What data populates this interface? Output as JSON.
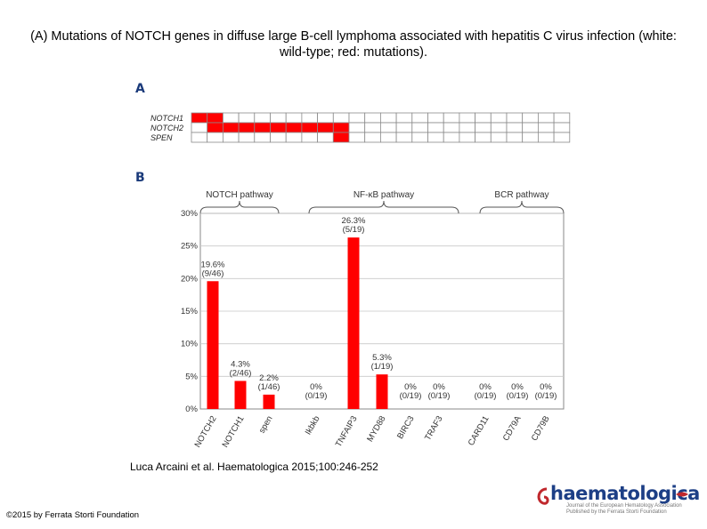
{
  "slide": {
    "title": "(A) Mutations of NOTCH genes in diffuse large B-cell lymphoma associated with hepatitis C virus infection (white: wild-type; red: mutations).",
    "citation": "Luca Arcaini et al. Haematologica 2015;100:246-252",
    "copyright": "©2015 by Ferrata Storti Foundation",
    "logo_text": "haematologica",
    "logo_subtitle": "Journal of the European Hematology Association Published by the Ferrata Storti Foundation"
  },
  "panel_a": {
    "letter": "A",
    "rows": [
      "NOTCH1",
      "NOTCH2",
      "SPEN"
    ],
    "columns": 24,
    "mutated_columns": [
      [
        0,
        1
      ],
      [
        1,
        2,
        3,
        4,
        5,
        6,
        7,
        8,
        9
      ],
      [
        9
      ]
    ],
    "colors": {
      "mutated": "#ff0000",
      "wild": "#ffffff",
      "grid": "#8a8a8a"
    }
  },
  "panel_b": {
    "letter": "B",
    "pathways": [
      "NOTCH pathway",
      "NF-κB pathway",
      "BCR pathway"
    ]
  },
  "chart_data": {
    "type": "bar",
    "categories": [
      "NOTCH2",
      "NOTCH1",
      "spen",
      "Ikbkb",
      "TNFAIP3",
      "MYD88",
      "BIRC3",
      "TRAF3",
      "CARD11",
      "CD79A",
      "CD79B"
    ],
    "values": [
      19.6,
      4.3,
      2.2,
      0,
      26.3,
      5.3,
      0,
      0,
      0,
      0,
      0
    ],
    "data_labels": [
      [
        "19.6%",
        "(9/46)"
      ],
      [
        "4.3%",
        "(2/46)"
      ],
      [
        "2.2%",
        "(1/46)"
      ],
      [
        "0%",
        "(0/19)"
      ],
      [
        "26.3%",
        "(5/19)"
      ],
      [
        "5.3%",
        "(1/19)"
      ],
      [
        "0%",
        "(0/19)"
      ],
      [
        "0%",
        "(0/19)"
      ],
      [
        "0%",
        "(0/19)"
      ],
      [
        "0%",
        "(0/19)"
      ],
      [
        "0%",
        "(0/19)"
      ]
    ],
    "yticks": [
      "0%",
      "5%",
      "10%",
      "15%",
      "20%",
      "25%",
      "30%"
    ],
    "ylim": [
      0,
      30
    ],
    "xlabel": "",
    "ylabel": "",
    "grid": true,
    "bar_color": "#ff0000"
  }
}
